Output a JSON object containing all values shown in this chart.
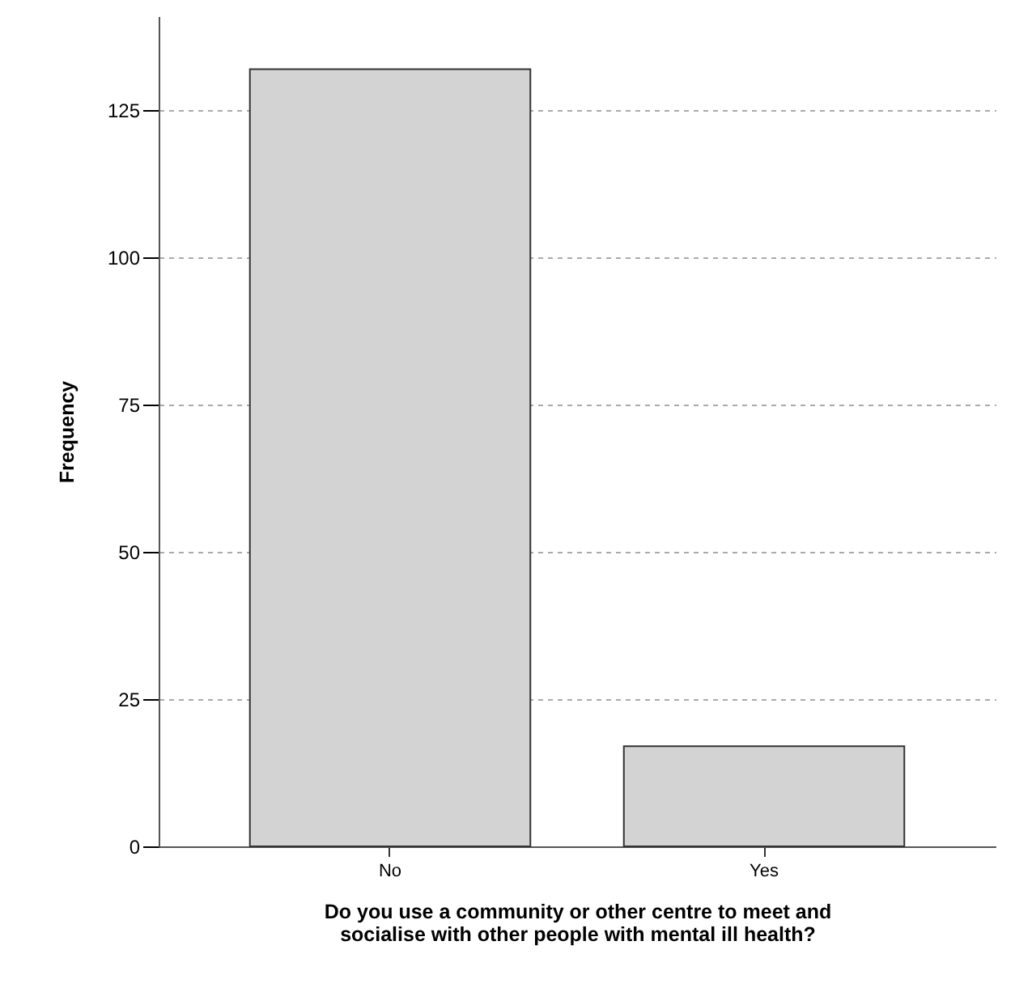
{
  "chart_data": {
    "type": "bar",
    "xlabel": "Do you use a community or other centre to meet and socialise with other people with mental ill health?",
    "ylabel": "Frequency",
    "categories": [
      "No",
      "Yes"
    ],
    "values": [
      132,
      17
    ],
    "color": "#d3d3d3",
    "ylim": [
      0,
      141
    ],
    "yticks": [
      0,
      25,
      50,
      75,
      100,
      125
    ],
    "grid": "y"
  }
}
